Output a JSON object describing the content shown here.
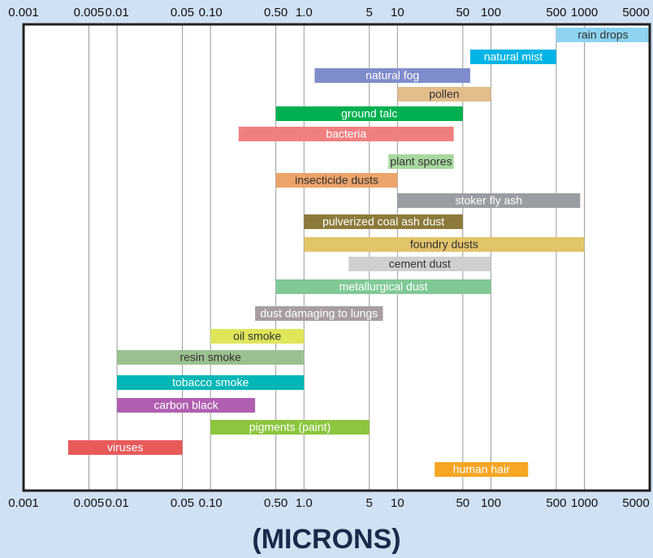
{
  "chart_data": {
    "type": "range_bar",
    "x_label": "(MICRONS)",
    "log_scale": true,
    "grid": true,
    "xlim": [
      0.001,
      5000
    ],
    "xticks": [
      0.001,
      0.005,
      0.01,
      0.05,
      {
        "value": 0.1,
        "label": "0.10"
      },
      {
        "value": 0.5,
        "label": "0.50"
      },
      {
        "value": 1,
        "label": "1.0"
      },
      5,
      10,
      50,
      100,
      500,
      1000,
      5000
    ],
    "categories": [
      "rain drops",
      "natural mist",
      "natural fog",
      "pollen",
      "ground talc",
      "bacteria",
      "plant spores",
      "insecticide dusts",
      "stoker fly ash",
      "pulverized coal ash dust",
      "foundry dusts",
      "cement dust",
      "metallurgical dust",
      "dust damaging to lungs",
      "oil smoke",
      "resin smoke",
      "tobacco smoke",
      "carbon black",
      "pigments (paint)",
      "viruses",
      "human hair"
    ],
    "starts": [
      500,
      60,
      1.3,
      10,
      0.5,
      0.2,
      8,
      0.5,
      10,
      1,
      1,
      3,
      0.5,
      0.3,
      0.1,
      0.01,
      0.01,
      0.01,
      0.1,
      0.003,
      25
    ],
    "ends": [
      5000,
      500,
      60,
      100,
      50,
      40,
      40,
      10,
      900,
      50,
      1000,
      100,
      100,
      7,
      1,
      1,
      1,
      0.3,
      5,
      0.05,
      250
    ],
    "colors": [
      "#8dd3f0",
      "#00b4e6",
      "#7f8ccb",
      "#e3bd8b",
      "#00b050",
      "#f08080",
      "#a8d8a0",
      "#eca46a",
      "#9a9ea3",
      "#8b7a3a",
      "#e2c46a",
      "#cfcfcf",
      "#80c996",
      "#a89ea0",
      "#dfe65a",
      "#9bc08f",
      "#00b6b6",
      "#b05fb0",
      "#8cc63f",
      "#e85a5a",
      "#f5a623"
    ]
  }
}
